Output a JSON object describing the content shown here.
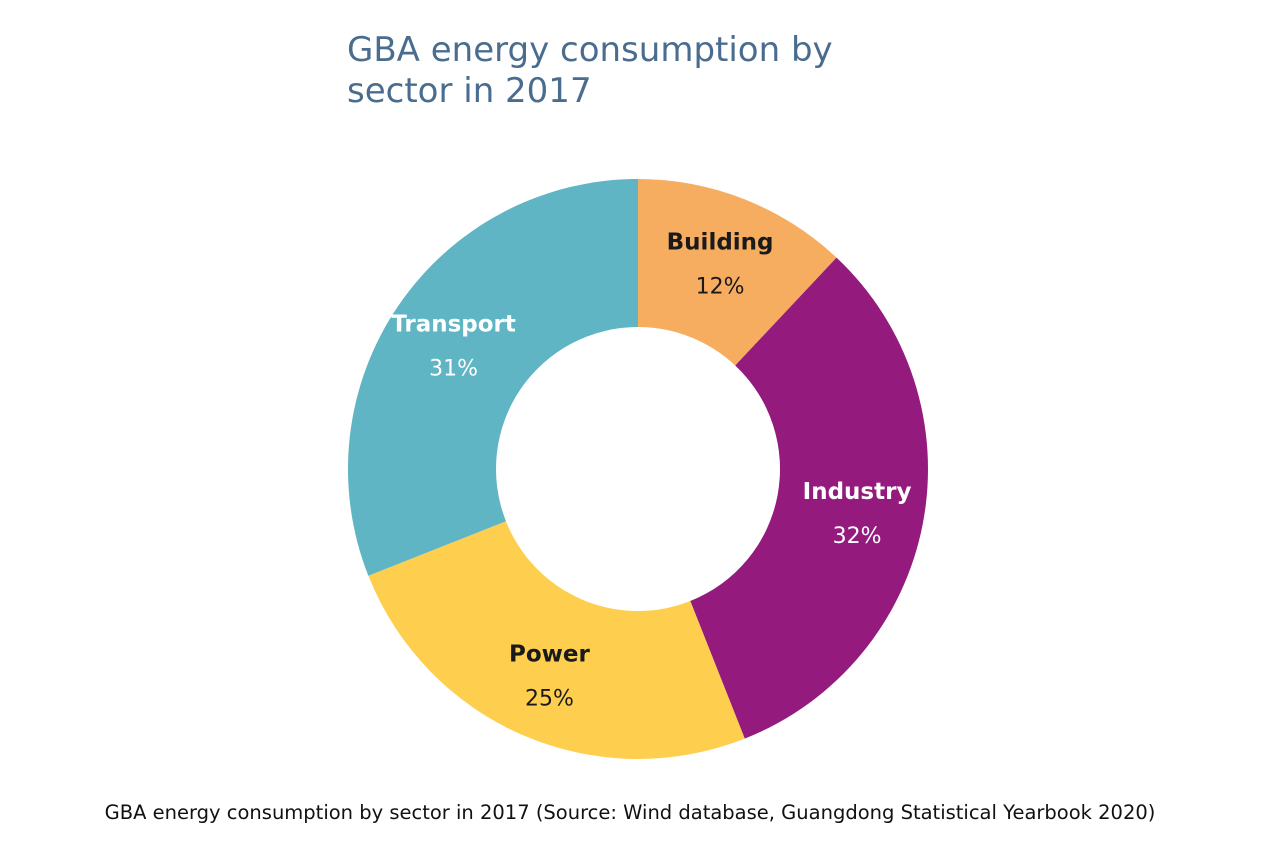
{
  "title_lines": [
    "GBA energy consumption by",
    "sector in 2017"
  ],
  "caption": "GBA energy consumption by sector in 2017 (Source: Wind database, Guangdong Statistical Yearbook 2020)",
  "chart_data": {
    "type": "pie",
    "title": "GBA energy consumption by sector in 2017",
    "donut": true,
    "unit": "%",
    "slices": [
      {
        "label": "Building",
        "value": 12,
        "value_label": "12%",
        "color": "#f6ad60",
        "text_color": "#1a1a1a"
      },
      {
        "label": "Industry",
        "value": 32,
        "value_label": "32%",
        "color": "#941b7d",
        "text_color": "#ffffff"
      },
      {
        "label": "Power",
        "value": 25,
        "value_label": "25%",
        "color": "#fecf4e",
        "text_color": "#1a1a1a"
      },
      {
        "label": "Transport",
        "value": 31,
        "value_label": "31%",
        "color": "#5fb5c3",
        "text_color": "#ffffff"
      }
    ]
  }
}
